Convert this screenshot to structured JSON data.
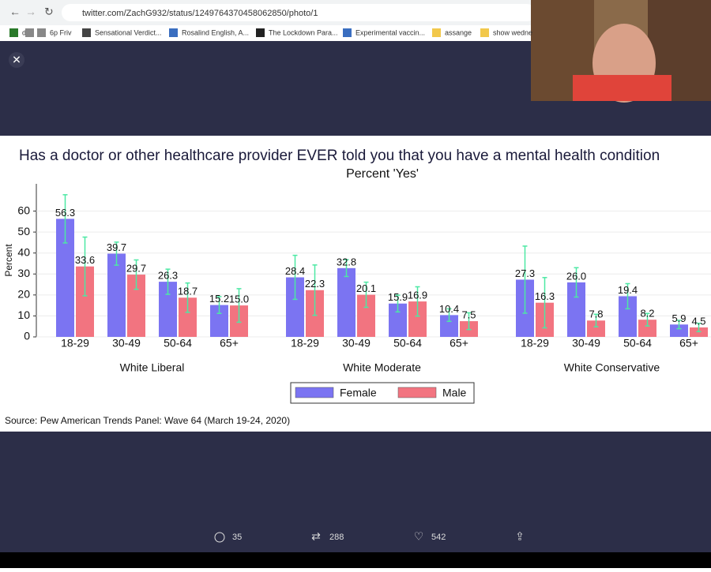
{
  "browser": {
    "url": "twitter.com/ZachG932/status/1249764370458062850/photo/1",
    "bookmarks": [
      "dd",
      "p",
      "6p Friv",
      "Sensational Verdict...",
      "Rosalind English, A...",
      "The Lockdown Para...",
      "Experimental vaccin...",
      "assange",
      "show wedne"
    ]
  },
  "chart_data": {
    "type": "bar",
    "title": "Has a doctor or other healthcare provider EVER told you that you have a mental health condition",
    "subtitle": "Percent 'Yes'",
    "y_label": "Percent",
    "source": "Source: Pew American Trends Panel: Wave 64 (March 19-24, 2020)",
    "groups": [
      {
        "name": "White Liberal",
        "categories": [
          "18-29",
          "30-49",
          "50-64",
          "65+"
        ]
      },
      {
        "name": "White Moderate",
        "categories": [
          "18-29",
          "30-49",
          "50-64",
          "65+"
        ]
      },
      {
        "name": "White Conservative",
        "categories": [
          "18-29",
          "30-49",
          "50-64",
          "65+"
        ]
      }
    ],
    "series": [
      {
        "name": "Female",
        "color": "#7b74f2",
        "values": [
          56.3,
          39.7,
          26.3,
          15.2,
          28.4,
          32.8,
          15.9,
          10.4,
          27.3,
          26.0,
          19.4,
          5.9
        ],
        "value_labels": [
          "56.3",
          "39.7",
          "26.3",
          "15.2",
          "28.4",
          "32.8",
          "15.9",
          "10.4",
          "27.3",
          "26.0",
          "19.4",
          "5.9"
        ],
        "errors": [
          11.5,
          5.5,
          6,
          4,
          10.5,
          4,
          4,
          3,
          16,
          7,
          6,
          2
        ]
      },
      {
        "name": "Male",
        "color": "#f27480",
        "values": [
          33.6,
          29.7,
          18.7,
          15.0,
          22.3,
          20.1,
          16.9,
          7.5,
          16.3,
          7.8,
          8.2,
          4.5
        ],
        "value_labels": [
          "33.6",
          "29.7",
          "18.7",
          "15.0",
          "22.3",
          "20.1",
          "16.9",
          "7.5",
          "16.3",
          "7.8",
          "8.2",
          "4.5"
        ],
        "errors": [
          14,
          7,
          7,
          8,
          12,
          6,
          7,
          4,
          12,
          3,
          3,
          2
        ]
      }
    ],
    "error_color": "#4de8a4",
    "ylim": [
      0,
      73
    ],
    "yticks": [
      0,
      10,
      20,
      30,
      40,
      50,
      60
    ],
    "grid": true
  },
  "actions": {
    "replies": "35",
    "retweets": "288",
    "likes": "542"
  }
}
